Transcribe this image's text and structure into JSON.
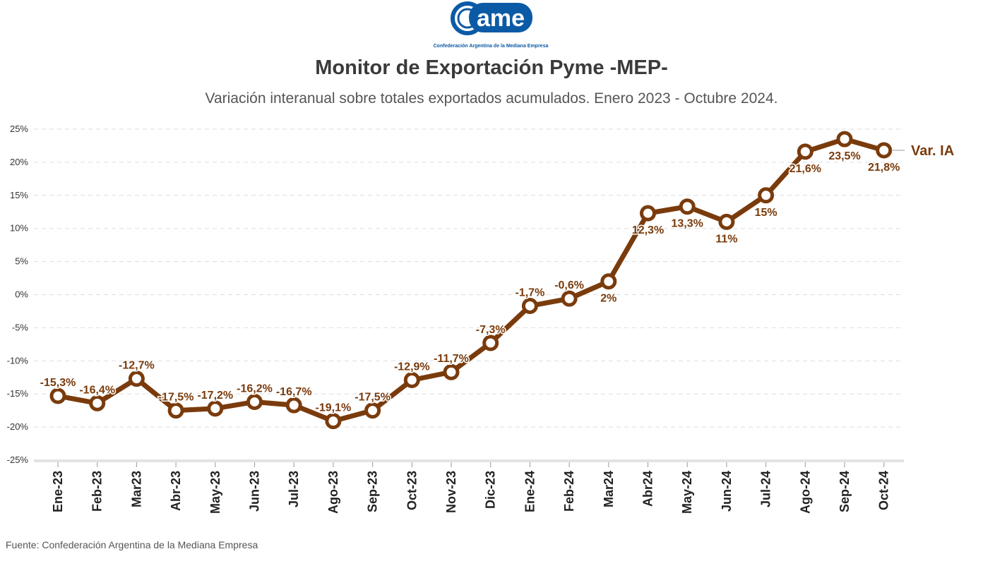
{
  "header": {
    "logo_text": "ame",
    "logo_caption": "Confederación Argentina de la Mediana Empresa",
    "logo_color": "#0b5aa6"
  },
  "chart_data": {
    "type": "line",
    "title": "Monitor de Exportación Pyme -MEP-",
    "subtitle": "Variación interanual sobre totales exportados acumulados. Enero 2023 - Octubre 2024.",
    "categories": [
      "Ene-23",
      "Feb-23",
      "Mar23",
      "Abr-23",
      "May-23",
      "Jun-23",
      "Jul-23",
      "Ago-23",
      "Sep-23",
      "Oct-23",
      "Nov-23",
      "Dic-23",
      "Ene-24",
      "Feb-24",
      "Mar24",
      "Abr24",
      "May-24",
      "Jun-24",
      "Jul-24",
      "Ago-24",
      "Sep-24",
      "Oct-24"
    ],
    "series": [
      {
        "name": "Var. IA",
        "color": "#7a3b0c",
        "values": [
          -15.3,
          -16.4,
          -12.7,
          -17.5,
          -17.2,
          -16.2,
          -16.7,
          -19.1,
          -17.5,
          -12.9,
          -11.7,
          -7.3,
          -1.7,
          -0.6,
          2,
          12.3,
          13.3,
          11,
          15,
          21.6,
          23.5,
          21.8
        ],
        "labels": [
          "-15,3%",
          "-16,4%",
          "-12,7%",
          "-17,5%",
          "-17,2%",
          "-16,2%",
          "-16,7%",
          "-19,1%",
          "-17,5%",
          "-12,9%",
          "-11,7%",
          "-7,3%",
          "-1,7%",
          "-0,6%",
          "2%",
          "12,3%",
          "13,3%",
          "11%",
          "15%",
          "21,6%",
          "23,5%",
          "21,8%"
        ],
        "label_positions": [
          "above",
          "above",
          "above",
          "above",
          "above",
          "above",
          "above",
          "above",
          "above",
          "above",
          "above",
          "above",
          "above",
          "above",
          "below",
          "below",
          "below",
          "below",
          "below",
          "below",
          "below",
          "below"
        ]
      }
    ],
    "yticks": [
      25,
      20,
      15,
      10,
      5,
      0,
      -5,
      -10,
      -15,
      -20,
      -25
    ],
    "ytick_labels": [
      "25%",
      "20%",
      "15%",
      "10%",
      "5%",
      "0%",
      "-5%",
      "-10%",
      "-15%",
      "-20%",
      "-25%"
    ],
    "ylim": [
      -25,
      25
    ],
    "grid": true,
    "xlabel": "",
    "ylabel": ""
  },
  "footer": {
    "source": "Fuente: Confederación Argentina de la Mediana Empresa"
  }
}
